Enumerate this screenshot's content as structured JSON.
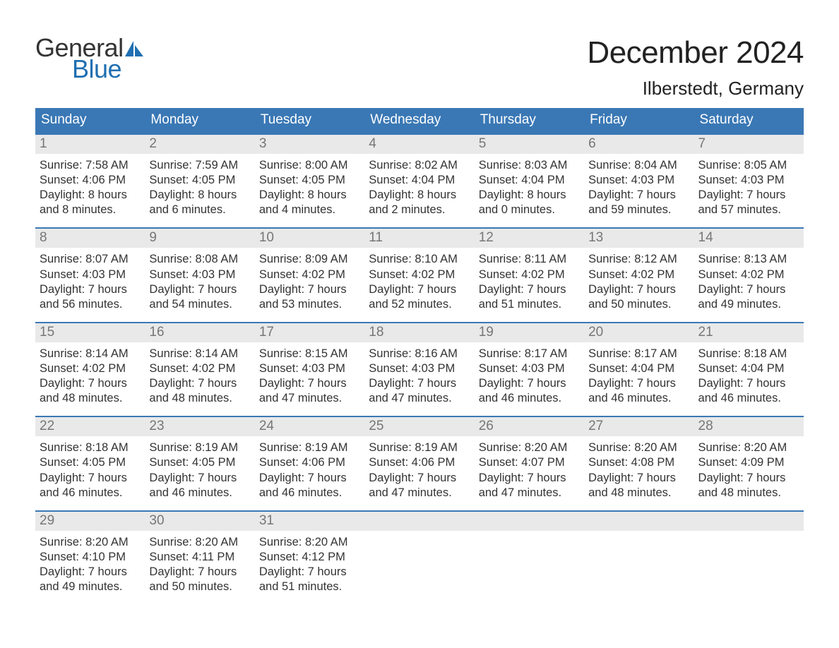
{
  "brand": {
    "general": "General",
    "blue": "Blue",
    "sail_color": "#1f6fb2"
  },
  "title": {
    "month": "December 2024",
    "location": "Ilberstedt, Germany"
  },
  "colors": {
    "header_bg": "#3a78b5",
    "header_text": "#ffffff",
    "daynum_bg": "#e9e9e9",
    "daynum_text": "#767676",
    "body_text": "#333333",
    "week_border": "#3a78b5",
    "background": "#ffffff"
  },
  "typography": {
    "month_title_fontsize": 44,
    "location_fontsize": 26,
    "dow_fontsize": 19,
    "daynum_fontsize": 19,
    "body_fontsize": 16.5
  },
  "days_of_week": [
    "Sunday",
    "Monday",
    "Tuesday",
    "Wednesday",
    "Thursday",
    "Friday",
    "Saturday"
  ],
  "labels": {
    "sunrise": "Sunrise:",
    "sunset": "Sunset:",
    "daylight": "Daylight:",
    "hours": "hours",
    "and": "and",
    "minutes": "minutes."
  },
  "weeks": [
    [
      {
        "day": 1,
        "sunrise": "7:58 AM",
        "sunset": "4:06 PM",
        "dl_h": 8,
        "dl_m": 8
      },
      {
        "day": 2,
        "sunrise": "7:59 AM",
        "sunset": "4:05 PM",
        "dl_h": 8,
        "dl_m": 6
      },
      {
        "day": 3,
        "sunrise": "8:00 AM",
        "sunset": "4:05 PM",
        "dl_h": 8,
        "dl_m": 4
      },
      {
        "day": 4,
        "sunrise": "8:02 AM",
        "sunset": "4:04 PM",
        "dl_h": 8,
        "dl_m": 2
      },
      {
        "day": 5,
        "sunrise": "8:03 AM",
        "sunset": "4:04 PM",
        "dl_h": 8,
        "dl_m": 0
      },
      {
        "day": 6,
        "sunrise": "8:04 AM",
        "sunset": "4:03 PM",
        "dl_h": 7,
        "dl_m": 59
      },
      {
        "day": 7,
        "sunrise": "8:05 AM",
        "sunset": "4:03 PM",
        "dl_h": 7,
        "dl_m": 57
      }
    ],
    [
      {
        "day": 8,
        "sunrise": "8:07 AM",
        "sunset": "4:03 PM",
        "dl_h": 7,
        "dl_m": 56
      },
      {
        "day": 9,
        "sunrise": "8:08 AM",
        "sunset": "4:03 PM",
        "dl_h": 7,
        "dl_m": 54
      },
      {
        "day": 10,
        "sunrise": "8:09 AM",
        "sunset": "4:02 PM",
        "dl_h": 7,
        "dl_m": 53
      },
      {
        "day": 11,
        "sunrise": "8:10 AM",
        "sunset": "4:02 PM",
        "dl_h": 7,
        "dl_m": 52
      },
      {
        "day": 12,
        "sunrise": "8:11 AM",
        "sunset": "4:02 PM",
        "dl_h": 7,
        "dl_m": 51
      },
      {
        "day": 13,
        "sunrise": "8:12 AM",
        "sunset": "4:02 PM",
        "dl_h": 7,
        "dl_m": 50
      },
      {
        "day": 14,
        "sunrise": "8:13 AM",
        "sunset": "4:02 PM",
        "dl_h": 7,
        "dl_m": 49
      }
    ],
    [
      {
        "day": 15,
        "sunrise": "8:14 AM",
        "sunset": "4:02 PM",
        "dl_h": 7,
        "dl_m": 48
      },
      {
        "day": 16,
        "sunrise": "8:14 AM",
        "sunset": "4:02 PM",
        "dl_h": 7,
        "dl_m": 48
      },
      {
        "day": 17,
        "sunrise": "8:15 AM",
        "sunset": "4:03 PM",
        "dl_h": 7,
        "dl_m": 47
      },
      {
        "day": 18,
        "sunrise": "8:16 AM",
        "sunset": "4:03 PM",
        "dl_h": 7,
        "dl_m": 47
      },
      {
        "day": 19,
        "sunrise": "8:17 AM",
        "sunset": "4:03 PM",
        "dl_h": 7,
        "dl_m": 46
      },
      {
        "day": 20,
        "sunrise": "8:17 AM",
        "sunset": "4:04 PM",
        "dl_h": 7,
        "dl_m": 46
      },
      {
        "day": 21,
        "sunrise": "8:18 AM",
        "sunset": "4:04 PM",
        "dl_h": 7,
        "dl_m": 46
      }
    ],
    [
      {
        "day": 22,
        "sunrise": "8:18 AM",
        "sunset": "4:05 PM",
        "dl_h": 7,
        "dl_m": 46
      },
      {
        "day": 23,
        "sunrise": "8:19 AM",
        "sunset": "4:05 PM",
        "dl_h": 7,
        "dl_m": 46
      },
      {
        "day": 24,
        "sunrise": "8:19 AM",
        "sunset": "4:06 PM",
        "dl_h": 7,
        "dl_m": 46
      },
      {
        "day": 25,
        "sunrise": "8:19 AM",
        "sunset": "4:06 PM",
        "dl_h": 7,
        "dl_m": 47
      },
      {
        "day": 26,
        "sunrise": "8:20 AM",
        "sunset": "4:07 PM",
        "dl_h": 7,
        "dl_m": 47
      },
      {
        "day": 27,
        "sunrise": "8:20 AM",
        "sunset": "4:08 PM",
        "dl_h": 7,
        "dl_m": 48
      },
      {
        "day": 28,
        "sunrise": "8:20 AM",
        "sunset": "4:09 PM",
        "dl_h": 7,
        "dl_m": 48
      }
    ],
    [
      {
        "day": 29,
        "sunrise": "8:20 AM",
        "sunset": "4:10 PM",
        "dl_h": 7,
        "dl_m": 49
      },
      {
        "day": 30,
        "sunrise": "8:20 AM",
        "sunset": "4:11 PM",
        "dl_h": 7,
        "dl_m": 50
      },
      {
        "day": 31,
        "sunrise": "8:20 AM",
        "sunset": "4:12 PM",
        "dl_h": 7,
        "dl_m": 51
      },
      null,
      null,
      null,
      null
    ]
  ]
}
